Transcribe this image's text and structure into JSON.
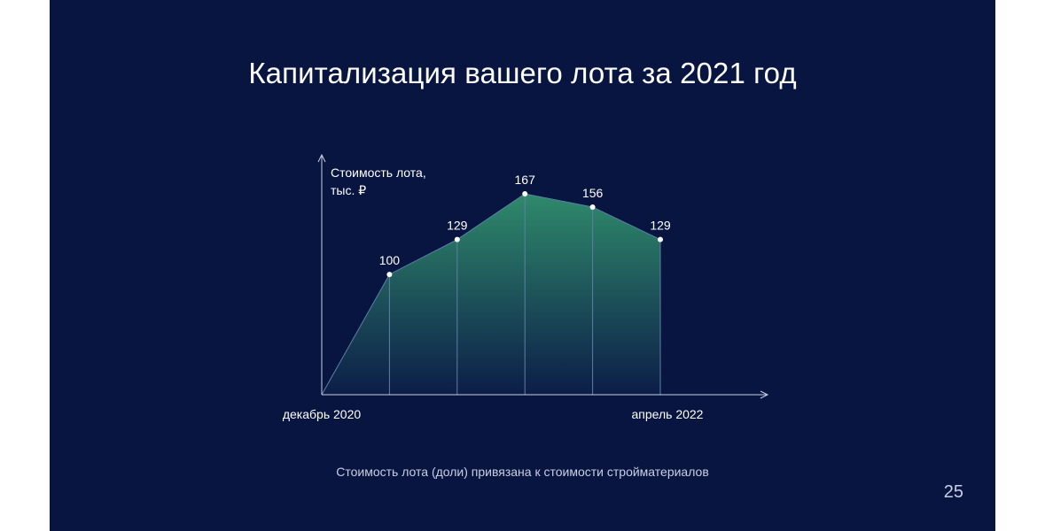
{
  "slide": {
    "title": "Капитализация вашего лота за 2021 год",
    "caption": "Стоимость лота (доли) привязана к стоимости стройматериалов",
    "page_number": "25"
  },
  "colors": {
    "background": "#081540",
    "area_top": "#2f8a6b",
    "area_bottom": "#0c1d48",
    "line": "#5e7fa6",
    "axis": "#c9cfe3",
    "point": "#ffffff"
  },
  "chart_data": {
    "type": "area",
    "ylabel_lines": [
      "Стоимость лота,",
      "тыс. ₽"
    ],
    "xlabel_start": "декабрь 2020",
    "xlabel_end": "апрель 2022",
    "x": [
      0,
      1,
      2,
      3,
      4,
      5
    ],
    "values": [
      0,
      100,
      129,
      167,
      156,
      129
    ],
    "labels": [
      "",
      "100",
      "129",
      "167",
      "156",
      "129"
    ],
    "ylim": [
      0,
      167
    ],
    "grid": false,
    "axis_arrows": true
  }
}
